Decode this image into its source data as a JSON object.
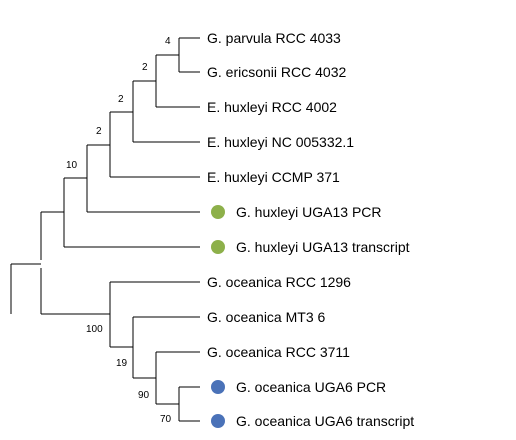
{
  "tree": {
    "leaves": [
      {
        "id": "parvula",
        "label": "G. parvula RCC 4033"
      },
      {
        "id": "ericsonii",
        "label": "G. ericsonii RCC 4032"
      },
      {
        "id": "hux4002",
        "label": "E. huxleyi RCC 4002"
      },
      {
        "id": "huxNC",
        "label": "E. huxleyi NC 005332.1"
      },
      {
        "id": "huxCCMP",
        "label": "E. huxleyi CCMP 371"
      },
      {
        "id": "huxPCR",
        "label": "G. huxleyi UGA13 PCR",
        "marker": "green"
      },
      {
        "id": "huxTr",
        "label": "G. huxleyi UGA13 transcript",
        "marker": "green"
      },
      {
        "id": "oce1296",
        "label": "G. oceanica RCC 1296"
      },
      {
        "id": "oceMT3",
        "label": "G. oceanica MT3 6"
      },
      {
        "id": "oce3711",
        "label": "G. oceanica RCC 3711"
      },
      {
        "id": "ocePCR",
        "label": "G. oceanica UGA6 PCR",
        "marker": "blue"
      },
      {
        "id": "oceTr",
        "label": "G. oceanica UGA6 transcript",
        "marker": "blue"
      }
    ],
    "support_values": [
      {
        "clade": "parvula-ericsonii",
        "value": "4"
      },
      {
        "clade": "with-hux4002",
        "value": "2"
      },
      {
        "clade": "with-huxNC",
        "value": "2"
      },
      {
        "clade": "with-huxCCMP",
        "value": "2"
      },
      {
        "clade": "with-huxPCR",
        "value": "10"
      },
      {
        "clade": "oceanica-all",
        "value": "100"
      },
      {
        "clade": "with-oceMT3",
        "value": "19"
      },
      {
        "clade": "with-oce3711",
        "value": "90"
      },
      {
        "clade": "uga6-pair",
        "value": "70"
      }
    ],
    "marker_colors": {
      "green": "#8db04a",
      "blue": "#4a72b8"
    },
    "line_color": "#000000"
  }
}
